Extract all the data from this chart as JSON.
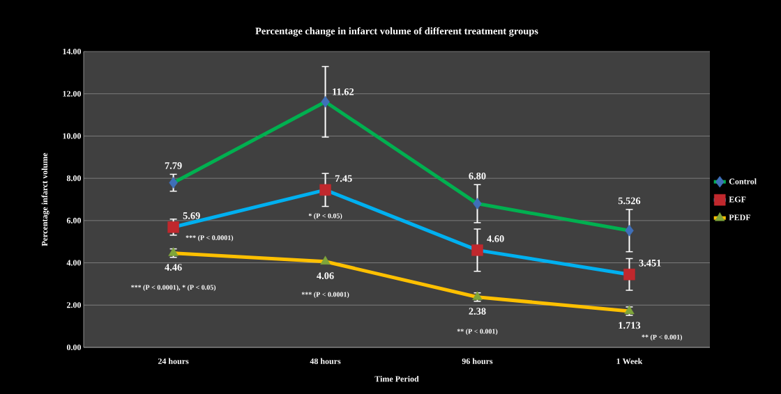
{
  "chart_data": {
    "type": "line",
    "title": "Percentage change in infarct volume of different treatment groups",
    "xlabel": "Time Period",
    "ylabel": "Percentage infarct volume",
    "categories": [
      "24 hours",
      "48 hours",
      "96 hours",
      "1 Week"
    ],
    "series": [
      {
        "name": "Control",
        "color": "#00b050",
        "marker": "diamond",
        "values": [
          7.79,
          11.62,
          6.8,
          5.526
        ],
        "errors": [
          0.4,
          1.67,
          0.9,
          1.0
        ],
        "value_labels": [
          "7.79",
          "11.62",
          "6.80",
          "5.526"
        ]
      },
      {
        "name": "EGF",
        "color": "#00b0f0",
        "marker": "square",
        "values": [
          5.69,
          7.45,
          4.6,
          3.451
        ],
        "errors": [
          0.38,
          0.78,
          1.0,
          0.75
        ],
        "value_labels": [
          "5.69",
          "7.45",
          "4.60",
          "3.451"
        ]
      },
      {
        "name": "PEDF",
        "color": "#ffc000",
        "marker": "triangle",
        "values": [
          4.46,
          4.06,
          2.38,
          1.713
        ],
        "errors": [
          0.2,
          null,
          0.2,
          0.2
        ],
        "value_labels": [
          "4.46",
          "4.06",
          "2.38",
          "1.713"
        ]
      }
    ],
    "ylim": [
      0,
      14
    ],
    "yticks": [
      {
        "value": 0,
        "label": "0.00"
      },
      {
        "value": 2,
        "label": "2.00"
      },
      {
        "value": 4,
        "label": "4.00"
      },
      {
        "value": 6,
        "label": "6.00"
      },
      {
        "value": 8,
        "label": "8.00"
      },
      {
        "value": 10,
        "label": "10.00"
      },
      {
        "value": 12,
        "label": "12.00"
      },
      {
        "value": 14,
        "label": "14.00"
      }
    ],
    "grid": "y",
    "legend": "right",
    "line_style": "solid",
    "annotations": [
      "*** (P < 0.0001)",
      "* (P < 0.05)",
      "*** (P < 0.0001), * (P < 0.05)",
      "*** (P < 0.0001)",
      "** (P < 0.001)",
      "** (P < 0.001)"
    ]
  }
}
